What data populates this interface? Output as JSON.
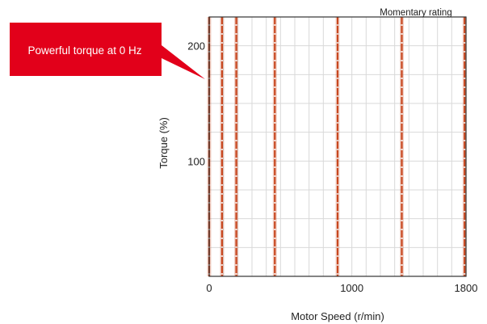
{
  "chart_data": {
    "type": "line",
    "title": "",
    "xlabel": "Motor Speed (r/min)",
    "ylabel": "Torque (%)",
    "xlim": [
      0,
      1800
    ],
    "ylim": [
      0,
      225
    ],
    "x_ticks": [
      0,
      1000,
      1800
    ],
    "x_tick_labels": [
      "0",
      "1000",
      "1800"
    ],
    "y_ticks": [
      100,
      200
    ],
    "y_tick_labels": [
      "100",
      "200"
    ],
    "grid": true,
    "legend": "none",
    "annotations": {
      "momentary": "Momentary rating",
      "callout": "Powerful torque at 0 Hz"
    },
    "series": [
      {
        "color": "#c8471f",
        "lines": [
          {
            "x": 0,
            "y": [
              0,
              225
            ]
          },
          {
            "x": 90,
            "y": [
              0,
              225
            ]
          },
          {
            "x": 190,
            "y": [
              0,
              225
            ]
          },
          {
            "x": 460,
            "y": [
              0,
              225
            ]
          },
          {
            "x": 900,
            "y": [
              0,
              225
            ]
          },
          {
            "x": 1350,
            "y": [
              0,
              225
            ]
          },
          {
            "x": 1790,
            "y": [
              0,
              225
            ]
          }
        ]
      }
    ],
    "colors": {
      "callout_fill": "#e2001a",
      "line": "#c8471f",
      "grid": "#d9d9d9",
      "axis": "#333333"
    }
  }
}
